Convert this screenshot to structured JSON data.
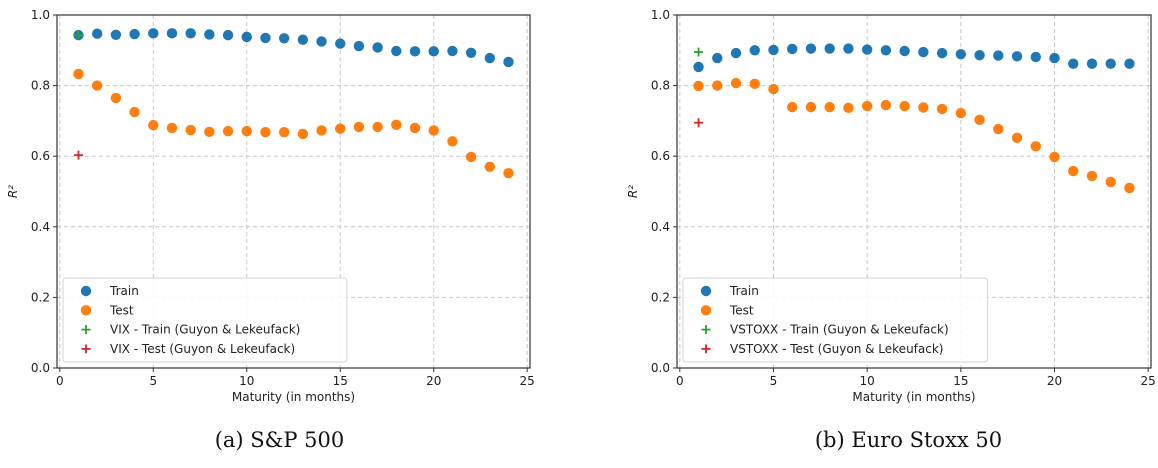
{
  "chart_data": [
    {
      "id": "a",
      "type": "scatter",
      "caption": "(a) S&P 500",
      "title": "",
      "xlabel": "Maturity (in months)",
      "ylabel": "R²",
      "xlim": [
        -0.15,
        25.15
      ],
      "ylim": [
        0.0,
        1.0
      ],
      "xticks": [
        0,
        5,
        10,
        15,
        20,
        25
      ],
      "xtick_labels": [
        "0",
        "5",
        "10",
        "15",
        "20",
        "25"
      ],
      "yticks": [
        0.0,
        0.2,
        0.4,
        0.6,
        0.8,
        1.0
      ],
      "ytick_labels": [
        "0.0",
        "0.2",
        "0.4",
        "0.6",
        "0.8",
        "1.0"
      ],
      "grid": true,
      "legend_position": "bottom-left",
      "x": [
        1,
        2,
        3,
        4,
        5,
        6,
        7,
        8,
        9,
        10,
        11,
        12,
        13,
        14,
        15,
        16,
        17,
        18,
        19,
        20,
        21,
        22,
        23,
        24
      ],
      "series": [
        {
          "name": "Train",
          "marker": "circle",
          "color": "#1f77b4",
          "values": [
            0.943,
            0.947,
            0.944,
            0.946,
            0.948,
            0.948,
            0.948,
            0.945,
            0.943,
            0.938,
            0.935,
            0.934,
            0.93,
            0.925,
            0.919,
            0.912,
            0.908,
            0.898,
            0.897,
            0.897,
            0.898,
            0.893,
            0.878,
            0.867
          ]
        },
        {
          "name": "Test",
          "marker": "circle",
          "color": "#ff7f0e",
          "values": [
            0.833,
            0.8,
            0.765,
            0.725,
            0.688,
            0.68,
            0.674,
            0.669,
            0.671,
            0.671,
            0.668,
            0.668,
            0.663,
            0.673,
            0.678,
            0.683,
            0.683,
            0.689,
            0.68,
            0.673,
            0.642,
            0.598,
            0.57,
            0.552
          ]
        },
        {
          "name": "VIX - Train (Guyon & Lekeufack)",
          "marker": "plus",
          "color": "#2ca02c",
          "points": [
            [
              1,
              0.943
            ]
          ]
        },
        {
          "name": "VIX - Test (Guyon & Lekeufack)",
          "marker": "plus",
          "color": "#d62728",
          "points": [
            [
              1,
              0.603
            ]
          ]
        }
      ]
    },
    {
      "id": "b",
      "type": "scatter",
      "caption": "(b) Euro Stoxx 50",
      "title": "",
      "xlabel": "Maturity (in months)",
      "ylabel": "R²",
      "xlim": [
        -0.15,
        25.15
      ],
      "ylim": [
        0.0,
        1.0
      ],
      "xticks": [
        0,
        5,
        10,
        15,
        20,
        25
      ],
      "xtick_labels": [
        "0",
        "5",
        "10",
        "15",
        "20",
        "25"
      ],
      "yticks": [
        0.0,
        0.2,
        0.4,
        0.6,
        0.8,
        1.0
      ],
      "ytick_labels": [
        "0.0",
        "0.2",
        "0.4",
        "0.6",
        "0.8",
        "1.0"
      ],
      "grid": true,
      "legend_position": "bottom-left",
      "x": [
        1,
        2,
        3,
        4,
        5,
        6,
        7,
        8,
        9,
        10,
        11,
        12,
        13,
        14,
        15,
        16,
        17,
        18,
        19,
        20,
        21,
        22,
        23,
        24
      ],
      "series": [
        {
          "name": "Train",
          "marker": "circle",
          "color": "#1f77b4",
          "values": [
            0.853,
            0.878,
            0.892,
            0.9,
            0.901,
            0.904,
            0.905,
            0.905,
            0.905,
            0.902,
            0.9,
            0.898,
            0.895,
            0.892,
            0.889,
            0.886,
            0.885,
            0.883,
            0.881,
            0.878,
            0.862,
            0.862,
            0.862,
            0.862
          ]
        },
        {
          "name": "Test",
          "marker": "circle",
          "color": "#ff7f0e",
          "values": [
            0.799,
            0.8,
            0.807,
            0.805,
            0.79,
            0.739,
            0.739,
            0.739,
            0.737,
            0.742,
            0.745,
            0.742,
            0.738,
            0.734,
            0.722,
            0.703,
            0.677,
            0.652,
            0.628,
            0.598,
            0.558,
            0.544,
            0.527,
            0.51
          ]
        },
        {
          "name": "VSTOXX - Train (Guyon & Lekeufack)",
          "marker": "plus",
          "color": "#2ca02c",
          "points": [
            [
              1,
              0.895
            ]
          ]
        },
        {
          "name": "VSTOXX - Test (Guyon & Lekeufack)",
          "marker": "plus",
          "color": "#d62728",
          "points": [
            [
              1,
              0.695
            ]
          ]
        }
      ]
    }
  ]
}
